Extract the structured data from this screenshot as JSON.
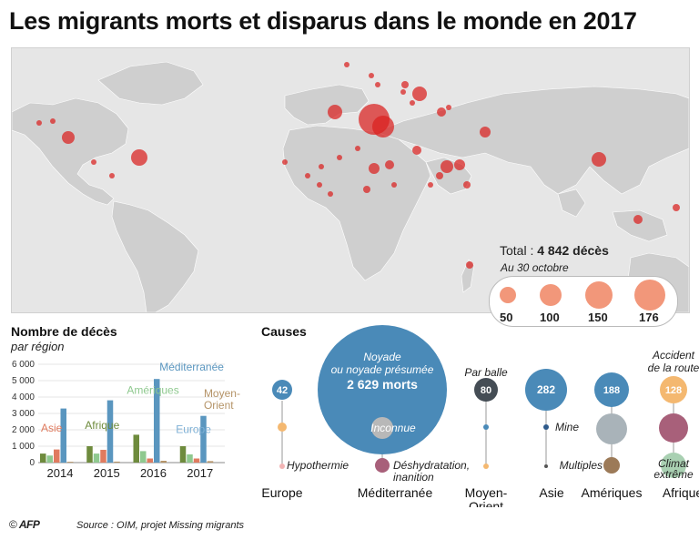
{
  "title": "Les migrants morts et disparus dans le monde en 2017",
  "map": {
    "total_label": "Total : ",
    "total_value": "4 842 décès",
    "date_note": "Au 30 octobre",
    "legend_values": [
      "50",
      "100",
      "150",
      "176"
    ],
    "colors": {
      "land": "#cfcfcf",
      "sea": "#e6e6e6",
      "dot": "#d9201f",
      "legend_dot": "#f2977a"
    }
  },
  "chart_data": [
    {
      "type": "bar",
      "title": "Nombre de décès",
      "subtitle": "par région",
      "categories": [
        "2014",
        "2015",
        "2016",
        "2017"
      ],
      "ylim": [
        0,
        6000
      ],
      "yticks": [
        "0",
        "1 000",
        "2 000",
        "3 000",
        "4 000",
        "5 000",
        "6 000"
      ],
      "series": [
        {
          "name": "Afrique",
          "color": "#6e8b3d",
          "values": [
            550,
            1000,
            1700,
            1000
          ]
        },
        {
          "name": "Amériques",
          "color": "#8fc98f",
          "values": [
            430,
            550,
            700,
            500
          ]
        },
        {
          "name": "Asie",
          "color": "#e07b5f",
          "values": [
            800,
            780,
            250,
            250
          ]
        },
        {
          "name": "Méditerranée",
          "color": "#5a96bf",
          "values": [
            3300,
            3800,
            5100,
            2850
          ]
        },
        {
          "name": "Moyen-Orient",
          "color": "#b59468",
          "values": [
            50,
            60,
            110,
            90
          ]
        },
        {
          "name": "Europe",
          "color": "#7fb1d6",
          "values": [
            0,
            0,
            0,
            0
          ]
        }
      ],
      "series_labels": {
        "Asie": "Asie",
        "Afrique": "Afrique",
        "Amériques": "Amériques",
        "Méditerranée": "Méditerranée",
        "Moyen-Orient": "Moyen-\nOrient",
        "Europe": "Europe"
      }
    },
    {
      "type": "bubble",
      "title": "Causes",
      "regions": [
        {
          "name": "Europe",
          "main_value": 42,
          "main_color": "#4a8ab8",
          "other": [
            {
              "label": "Hypothermie"
            }
          ]
        },
        {
          "name": "Méditerranée",
          "main_value": 2629,
          "main_label": "Noyade\nou noyade présumée",
          "main_value_text": "2 629 morts",
          "main_color": "#4a8ab8",
          "other": [
            {
              "label": "Inconnue"
            },
            {
              "label": "Déshydratation,\ninanition"
            }
          ]
        },
        {
          "name": "Moyen-\nOrient",
          "main_value": 80,
          "main_label": "Par balle",
          "main_color": "#454d55",
          "other": []
        },
        {
          "name": "Asie",
          "main_value": 282,
          "main_color": "#4a8ab8",
          "other": [
            {
              "label": "Mine"
            }
          ]
        },
        {
          "name": "Amériques",
          "main_value": 188,
          "main_color": "#4a8ab8",
          "other": [
            {
              "label": "Multiples"
            }
          ]
        },
        {
          "name": "Afrique",
          "main_value": 128,
          "main_label": "Accident\nde la route",
          "main_color": "#f4b870",
          "other": [
            {
              "label": "Climat\nextrême"
            }
          ]
        }
      ]
    }
  ],
  "footer": {
    "copyright": "©",
    "brand": "AFP",
    "source": "Source : OIM, projet Missing migrants"
  }
}
